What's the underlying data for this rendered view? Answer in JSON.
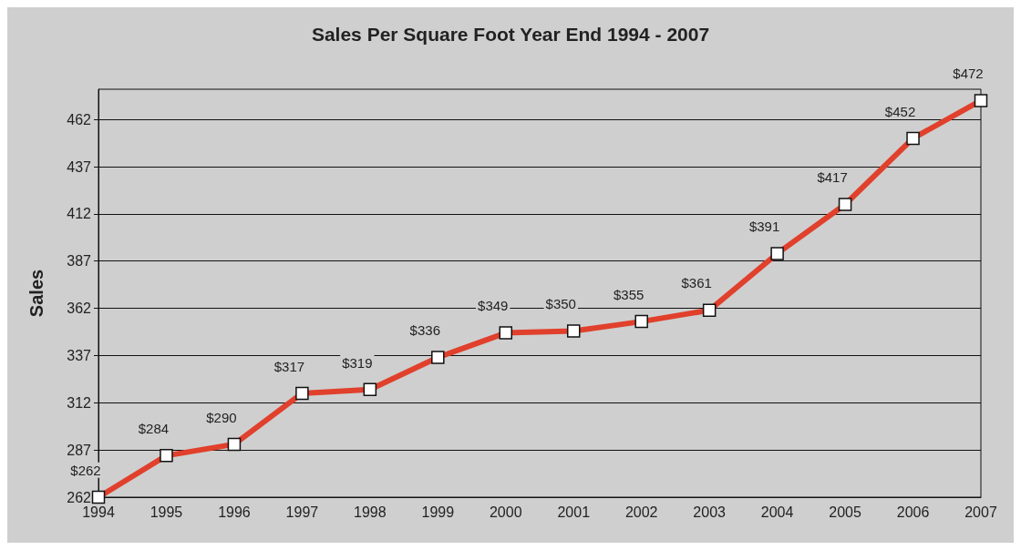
{
  "chart_data": {
    "type": "line",
    "title": "Sales Per Square Foot Year End 1994 - 2007",
    "ylabel": "Sales",
    "categories": [
      "1994",
      "1995",
      "1996",
      "1997",
      "1998",
      "1999",
      "2000",
      "2001",
      "2002",
      "2003",
      "2004",
      "2005",
      "2006",
      "2007"
    ],
    "series": [
      {
        "color": "#e0402c",
        "values": [
          262,
          284,
          290,
          317,
          319,
          336,
          349,
          350,
          355,
          361,
          391,
          417,
          452,
          472
        ],
        "value_labels": [
          "$262",
          "$284",
          "$290",
          "$317",
          "$319",
          "$336",
          "$349",
          "$350",
          "$355",
          "$361",
          "$391",
          "$417",
          "$452",
          "$472"
        ]
      }
    ],
    "ylim": [
      262,
      478
    ],
    "yticks": [
      262,
      287,
      312,
      337,
      362,
      387,
      412,
      437,
      462
    ],
    "grid": true,
    "marker": "square",
    "line_style": "solid"
  }
}
